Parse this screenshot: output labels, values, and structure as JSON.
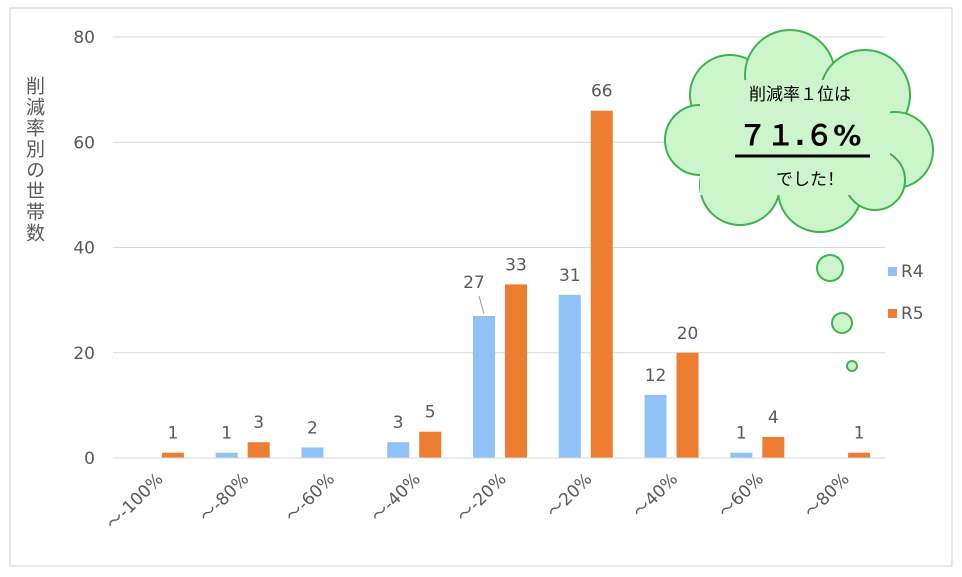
{
  "chart_data": {
    "type": "bar",
    "y_label": "削減率別の世帯数",
    "categories": [
      "～-100%",
      "～-80%",
      "～-60%",
      "～-40%",
      "～-20%",
      "～20%",
      "～40%",
      "～60%",
      "～80%"
    ],
    "series": [
      {
        "name": "R4",
        "color": "#8fc3f7",
        "values": [
          null,
          1,
          2,
          3,
          27,
          31,
          12,
          1,
          null
        ]
      },
      {
        "name": "R5",
        "color": "#ed7d31",
        "values": [
          1,
          3,
          null,
          5,
          33,
          66,
          20,
          4,
          1
        ]
      }
    ],
    "ylim": [
      0,
      80
    ],
    "yticks": [
      0,
      20,
      40,
      60,
      80
    ],
    "grid": true,
    "legend": "right",
    "annotations": [
      "削減率１位は",
      "７１.６%",
      "でした！"
    ]
  }
}
